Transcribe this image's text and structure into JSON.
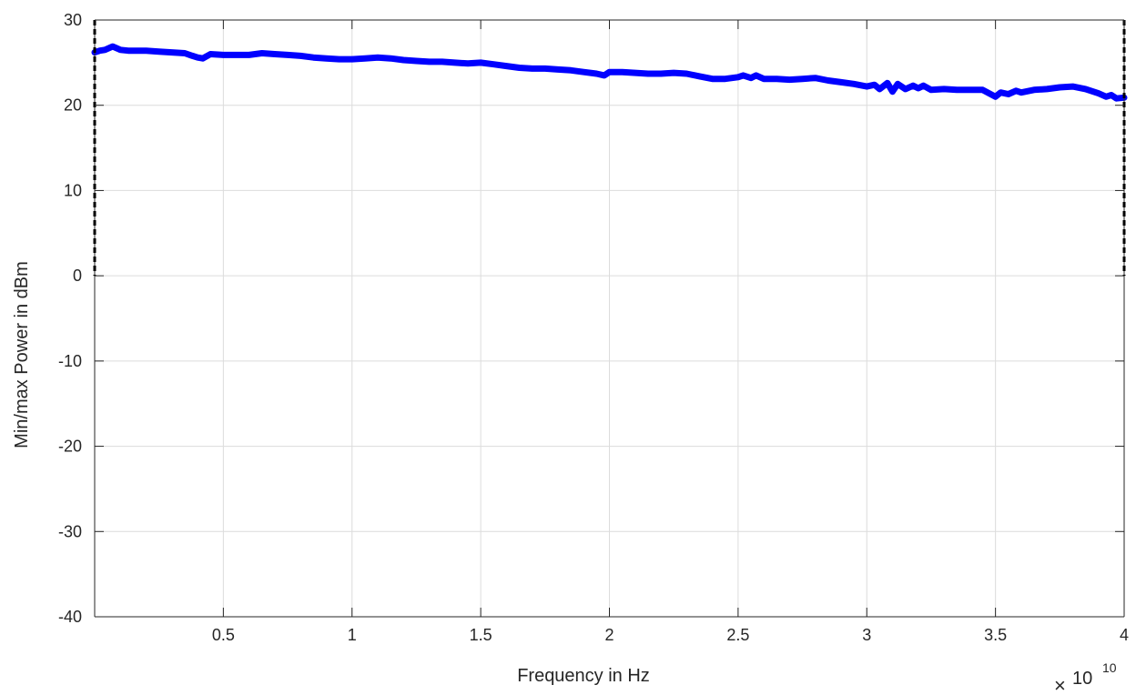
{
  "chart_data": {
    "type": "line",
    "title": "",
    "xlabel": "Frequency in Hz",
    "ylabel": "Min/max Power in dBm",
    "x_exponent": {
      "times": "×",
      "base": "10",
      "power": "10"
    },
    "xlim": [
      0.0,
      4.0
    ],
    "ylim": [
      -40,
      30
    ],
    "x_scale_factor": "1e10",
    "xticks": [
      0.5,
      1,
      1.5,
      2,
      2.5,
      3,
      3.5,
      4
    ],
    "xtick_labels": [
      "0.5",
      "1",
      "1.5",
      "2",
      "2.5",
      "3",
      "3.5",
      "4"
    ],
    "yticks": [
      -40,
      -30,
      -20,
      -10,
      0,
      10,
      20,
      30
    ],
    "ytick_labels": [
      "-40",
      "-30",
      "-20",
      "-10",
      "0",
      "10",
      "20",
      "30"
    ],
    "grid": true,
    "series": [
      {
        "color": "#0000ff",
        "x": [
          0.0,
          0.02,
          0.04,
          0.07,
          0.1,
          0.13,
          0.16,
          0.2,
          0.25,
          0.3,
          0.35,
          0.38,
          0.4,
          0.42,
          0.45,
          0.5,
          0.55,
          0.6,
          0.65,
          0.7,
          0.75,
          0.8,
          0.85,
          0.9,
          0.95,
          1.0,
          1.05,
          1.1,
          1.15,
          1.2,
          1.25,
          1.3,
          1.35,
          1.4,
          1.45,
          1.5,
          1.55,
          1.6,
          1.65,
          1.7,
          1.75,
          1.8,
          1.85,
          1.9,
          1.95,
          1.98,
          2.0,
          2.05,
          2.1,
          2.15,
          2.2,
          2.25,
          2.3,
          2.35,
          2.4,
          2.45,
          2.5,
          2.52,
          2.55,
          2.57,
          2.6,
          2.65,
          2.7,
          2.75,
          2.8,
          2.85,
          2.9,
          2.95,
          3.0,
          3.03,
          3.05,
          3.08,
          3.1,
          3.12,
          3.15,
          3.18,
          3.2,
          3.22,
          3.25,
          3.3,
          3.35,
          3.4,
          3.45,
          3.5,
          3.52,
          3.55,
          3.58,
          3.6,
          3.65,
          3.7,
          3.75,
          3.8,
          3.85,
          3.9,
          3.93,
          3.95,
          3.97,
          4.0
        ],
        "y": [
          26.2,
          26.4,
          26.5,
          26.9,
          26.5,
          26.4,
          26.4,
          26.4,
          26.3,
          26.2,
          26.1,
          25.8,
          25.6,
          25.5,
          26.0,
          25.9,
          25.9,
          25.9,
          26.1,
          26.0,
          25.9,
          25.8,
          25.6,
          25.5,
          25.4,
          25.4,
          25.5,
          25.6,
          25.5,
          25.3,
          25.2,
          25.1,
          25.1,
          25.0,
          24.9,
          25.0,
          24.8,
          24.6,
          24.4,
          24.3,
          24.3,
          24.2,
          24.1,
          23.9,
          23.7,
          23.5,
          23.9,
          23.9,
          23.8,
          23.7,
          23.7,
          23.8,
          23.7,
          23.4,
          23.1,
          23.1,
          23.3,
          23.5,
          23.2,
          23.5,
          23.1,
          23.1,
          23.0,
          23.1,
          23.2,
          22.9,
          22.7,
          22.5,
          22.2,
          22.4,
          21.9,
          22.6,
          21.6,
          22.5,
          21.9,
          22.3,
          22.0,
          22.3,
          21.8,
          21.9,
          21.8,
          21.8,
          21.8,
          21.0,
          21.5,
          21.3,
          21.7,
          21.5,
          21.8,
          21.9,
          22.1,
          22.2,
          21.9,
          21.4,
          21.0,
          21.2,
          20.8,
          20.9
        ]
      }
    ]
  }
}
